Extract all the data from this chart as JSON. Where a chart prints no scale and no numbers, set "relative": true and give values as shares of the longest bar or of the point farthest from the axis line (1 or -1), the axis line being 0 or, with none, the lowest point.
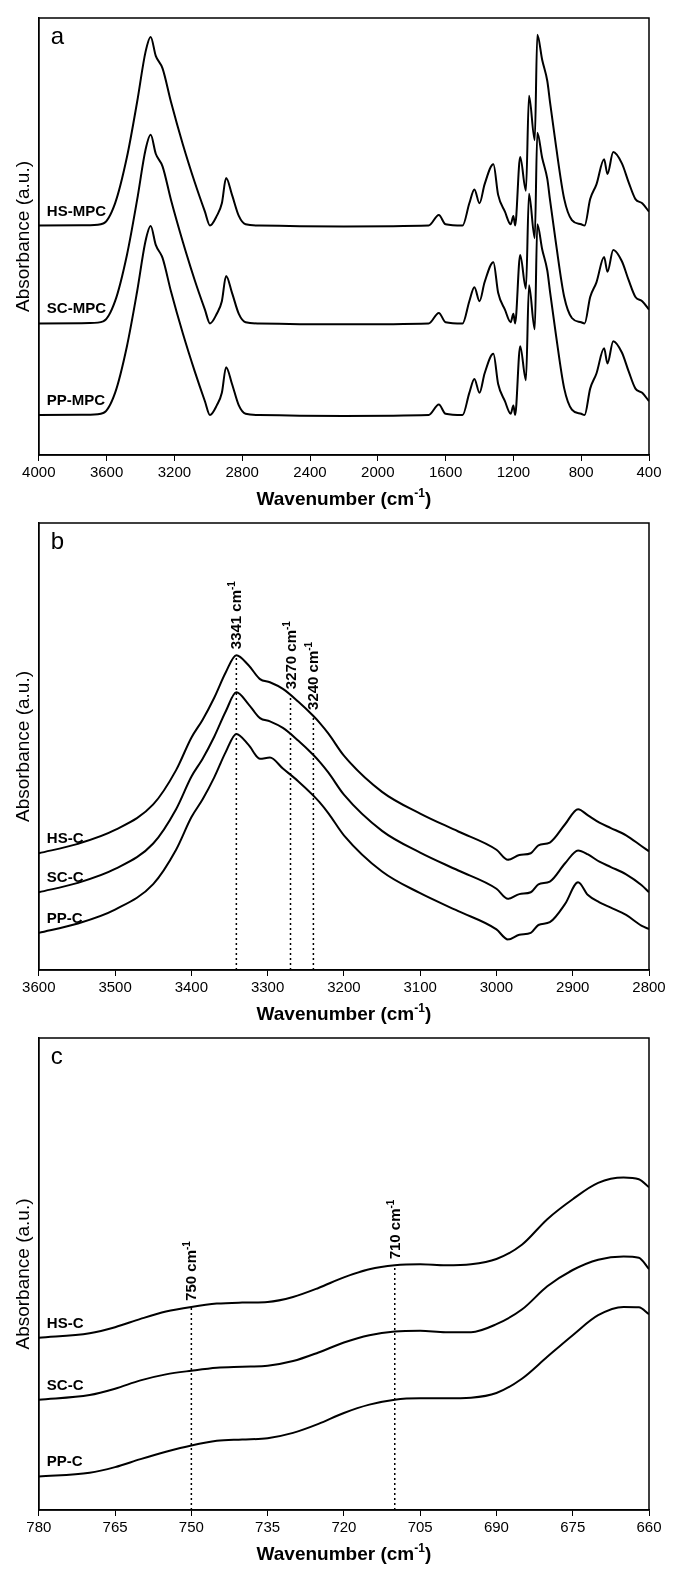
{
  "chart_data": [
    {
      "type": "line",
      "relative": true,
      "annotations": [
        "a"
      ],
      "xlabel": "Wavenumber (cm$^{-1}$)",
      "ylabel": "Absorbance (a.u.)",
      "xlim": [
        4000,
        400
      ],
      "xticks": [
        4000,
        3600,
        3200,
        2800,
        2400,
        2000,
        1600,
        1200,
        800,
        400
      ],
      "x": [
        4000,
        3700,
        3620,
        3550,
        3480,
        3420,
        3370,
        3340,
        3310,
        3270,
        3220,
        3150,
        3080,
        3020,
        2990,
        2950,
        2920,
        2895,
        2860,
        2820,
        2780,
        2700,
        2200,
        1700,
        1640,
        1600,
        1500,
        1460,
        1430,
        1400,
        1370,
        1318,
        1290,
        1250,
        1216,
        1200,
        1190,
        1160,
        1126,
        1108,
        1074,
        1059,
        1030,
        1000,
        984,
        950,
        900,
        855,
        800,
        780,
        747,
        710,
        665,
        645,
        611,
        560,
        520,
        480,
        440,
        400
      ],
      "series": [
        {
          "name": "HS-MPC",
          "color": "#000000",
          "values": [
            0.546,
            0.547,
            0.551,
            0.599,
            0.709,
            0.84,
            0.96,
            0.995,
            0.95,
            0.92,
            0.84,
            0.739,
            0.649,
            0.579,
            0.546,
            0.569,
            0.599,
            0.659,
            0.619,
            0.569,
            0.549,
            0.546,
            0.544,
            0.546,
            0.571,
            0.549,
            0.546,
            0.599,
            0.632,
            0.599,
            0.644,
            0.692,
            0.619,
            0.579,
            0.549,
            0.569,
            0.546,
            0.709,
            0.629,
            0.855,
            0.749,
            1.0,
            0.94,
            0.89,
            0.84,
            0.739,
            0.609,
            0.559,
            0.549,
            0.546,
            0.609,
            0.644,
            0.704,
            0.669,
            0.721,
            0.694,
            0.649,
            0.609,
            0.599,
            0.579
          ]
        },
        {
          "name": "SC-MPC",
          "color": "#000000",
          "values": [
            0.313,
            0.314,
            0.318,
            0.366,
            0.476,
            0.607,
            0.727,
            0.762,
            0.717,
            0.687,
            0.607,
            0.507,
            0.416,
            0.346,
            0.313,
            0.336,
            0.366,
            0.426,
            0.386,
            0.336,
            0.316,
            0.313,
            0.311,
            0.313,
            0.338,
            0.316,
            0.313,
            0.366,
            0.399,
            0.366,
            0.411,
            0.459,
            0.386,
            0.346,
            0.316,
            0.336,
            0.313,
            0.476,
            0.396,
            0.622,
            0.516,
            0.767,
            0.707,
            0.657,
            0.607,
            0.507,
            0.376,
            0.326,
            0.316,
            0.313,
            0.376,
            0.411,
            0.471,
            0.436,
            0.488,
            0.461,
            0.416,
            0.376,
            0.366,
            0.346
          ]
        },
        {
          "name": "PP-MPC",
          "color": "#000000",
          "values": [
            0.095,
            0.096,
            0.1,
            0.148,
            0.259,
            0.389,
            0.51,
            0.545,
            0.5,
            0.469,
            0.389,
            0.289,
            0.199,
            0.128,
            0.095,
            0.118,
            0.148,
            0.209,
            0.169,
            0.118,
            0.098,
            0.095,
            0.093,
            0.095,
            0.12,
            0.098,
            0.095,
            0.148,
            0.181,
            0.148,
            0.194,
            0.241,
            0.169,
            0.128,
            0.098,
            0.118,
            0.095,
            0.259,
            0.178,
            0.404,
            0.299,
            0.549,
            0.489,
            0.439,
            0.389,
            0.289,
            0.158,
            0.108,
            0.098,
            0.095,
            0.158,
            0.194,
            0.254,
            0.218,
            0.271,
            0.244,
            0.199,
            0.158,
            0.148,
            0.128
          ]
        }
      ]
    },
    {
      "type": "line",
      "relative": true,
      "annotations": [
        "b"
      ],
      "xlabel": "Wavenumber (cm$^{-1}$)",
      "ylabel": "Absorbance (a.u.)",
      "xlim": [
        3600,
        2800
      ],
      "xticks": [
        3600,
        3500,
        3400,
        3300,
        3200,
        3100,
        3000,
        2900,
        2800
      ],
      "x": [
        3600,
        3550,
        3500,
        3450,
        3420,
        3400,
        3385,
        3370,
        3355,
        3341,
        3325,
        3310,
        3297,
        3280,
        3260,
        3240,
        3232,
        3220,
        3200,
        3150,
        3100,
        3050,
        3000,
        2985,
        2970,
        2955,
        2945,
        2930,
        2910,
        2893,
        2880,
        2865,
        2850,
        2830,
        2810,
        2800
      ],
      "series": [
        {
          "name": "HS-C",
          "color": "#000000",
          "values": [
            0.371,
            0.4,
            0.445,
            0.526,
            0.635,
            0.738,
            0.796,
            0.865,
            0.945,
            1.0,
            0.968,
            0.924,
            0.914,
            0.893,
            0.853,
            0.807,
            0.786,
            0.75,
            0.681,
            0.566,
            0.497,
            0.44,
            0.382,
            0.35,
            0.365,
            0.371,
            0.396,
            0.405,
            0.463,
            0.511,
            0.491,
            0.468,
            0.451,
            0.428,
            0.394,
            0.377
          ]
        },
        {
          "name": "SC-C",
          "color": "#000000",
          "values": [
            0.247,
            0.276,
            0.321,
            0.402,
            0.511,
            0.614,
            0.672,
            0.741,
            0.821,
            0.882,
            0.844,
            0.8,
            0.79,
            0.769,
            0.729,
            0.683,
            0.662,
            0.626,
            0.557,
            0.442,
            0.373,
            0.316,
            0.258,
            0.226,
            0.241,
            0.247,
            0.272,
            0.281,
            0.339,
            0.38,
            0.367,
            0.344,
            0.327,
            0.304,
            0.27,
            0.247
          ]
        },
        {
          "name": "PP-C",
          "color": "#000000",
          "values": [
            0.118,
            0.147,
            0.192,
            0.273,
            0.382,
            0.485,
            0.543,
            0.612,
            0.692,
            0.75,
            0.715,
            0.671,
            0.675,
            0.64,
            0.6,
            0.554,
            0.533,
            0.497,
            0.428,
            0.313,
            0.244,
            0.187,
            0.129,
            0.097,
            0.112,
            0.118,
            0.143,
            0.152,
            0.21,
            0.279,
            0.238,
            0.215,
            0.198,
            0.175,
            0.141,
            0.13
          ]
        }
      ],
      "ref_lines": [
        {
          "axis": "x",
          "value": 3341,
          "label": "3341 cm$^{-1}$",
          "line_style": "dotted"
        },
        {
          "axis": "x",
          "value": 3270,
          "label": "3270 cm$^{-1}$",
          "line_style": "dotted"
        },
        {
          "axis": "x",
          "value": 3240,
          "label": "3240 cm$^{-1}$",
          "line_style": "dotted"
        }
      ]
    },
    {
      "type": "line",
      "relative": true,
      "annotations": [
        "c"
      ],
      "xlabel": "Wavenumber (cm$^{-1}$)",
      "ylabel": "Absorbance (a.u.)",
      "xlim": [
        780,
        660
      ],
      "xticks": [
        780,
        765,
        750,
        735,
        720,
        705,
        690,
        675,
        660
      ],
      "x": [
        780,
        770,
        765,
        760,
        755,
        750,
        745,
        740,
        735,
        730,
        725,
        720,
        715,
        710,
        705,
        700,
        695,
        690,
        685,
        680,
        675,
        670,
        665,
        662,
        660
      ],
      "series": [
        {
          "name": "HS-C",
          "color": "#000000",
          "values": [
            0.518,
            0.532,
            0.55,
            0.575,
            0.597,
            0.611,
            0.621,
            0.624,
            0.626,
            0.641,
            0.668,
            0.7,
            0.724,
            0.736,
            0.739,
            0.736,
            0.739,
            0.755,
            0.798,
            0.875,
            0.935,
            0.984,
            1.0,
            0.995,
            0.971
          ]
        },
        {
          "name": "SC-C",
          "color": "#000000",
          "values": [
            0.332,
            0.346,
            0.365,
            0.39,
            0.408,
            0.419,
            0.428,
            0.431,
            0.434,
            0.448,
            0.474,
            0.504,
            0.526,
            0.537,
            0.539,
            0.535,
            0.535,
            0.559,
            0.603,
            0.673,
            0.722,
            0.753,
            0.763,
            0.759,
            0.725
          ]
        },
        {
          "name": "PP-C",
          "color": "#000000",
          "values": [
            0.101,
            0.112,
            0.129,
            0.153,
            0.175,
            0.194,
            0.208,
            0.212,
            0.216,
            0.232,
            0.259,
            0.292,
            0.317,
            0.332,
            0.336,
            0.336,
            0.338,
            0.352,
            0.395,
            0.461,
            0.526,
            0.586,
            0.611,
            0.61,
            0.589
          ]
        }
      ],
      "ref_lines": [
        {
          "axis": "x",
          "value": 750,
          "label": "750 cm$^{-1}$",
          "line_style": "dotted"
        },
        {
          "axis": "x",
          "value": 710,
          "label": "710 cm$^{-1}$",
          "line_style": "dotted"
        }
      ]
    }
  ]
}
